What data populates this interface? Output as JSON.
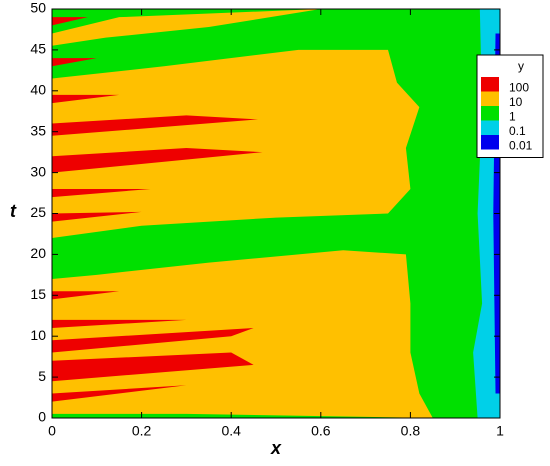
{
  "chart_data": {
    "type": "contour",
    "xlabel": "x",
    "ylabel": "t",
    "xlim": [
      0,
      1
    ],
    "ylim": [
      0,
      50
    ],
    "xticks": [
      0,
      0.2,
      0.4,
      0.6,
      0.8,
      1
    ],
    "yticks": [
      0,
      5,
      10,
      15,
      20,
      25,
      30,
      35,
      40,
      45,
      50
    ],
    "legend_title": "y",
    "levels": [
      100,
      10,
      1,
      0.1,
      0.01
    ],
    "colors": [
      "#ee0000",
      "#ffc000",
      "#00e000",
      "#00d0e8",
      "#0000ee"
    ],
    "regions": [
      {
        "level": 0.1,
        "points": [
          [
            0,
            0
          ],
          [
            1,
            0
          ],
          [
            1,
            50
          ],
          [
            0,
            50
          ]
        ]
      },
      {
        "level": 0.01,
        "points": [
          [
            0.99,
            3
          ],
          [
            1,
            3
          ],
          [
            1,
            47
          ],
          [
            0.99,
            47
          ],
          [
            0.985,
            25
          ]
        ]
      },
      {
        "level": 1,
        "points": [
          [
            0,
            0
          ],
          [
            0.95,
            0
          ],
          [
            0.94,
            8
          ],
          [
            0.96,
            14
          ],
          [
            0.95,
            25
          ],
          [
            0.96,
            38
          ],
          [
            0.955,
            50
          ],
          [
            0,
            50
          ]
        ]
      },
      {
        "level": 10,
        "points": [
          [
            0,
            0.5
          ],
          [
            0.3,
            0.5
          ],
          [
            0.85,
            0
          ],
          [
            0.82,
            3
          ],
          [
            0.8,
            8
          ],
          [
            0.8,
            14
          ],
          [
            0.79,
            20
          ],
          [
            0.65,
            20.5
          ],
          [
            0.35,
            19
          ],
          [
            0.1,
            17.5
          ],
          [
            0,
            17
          ]
        ]
      },
      {
        "level": 10,
        "points": [
          [
            0,
            22
          ],
          [
            0.2,
            23.5
          ],
          [
            0.5,
            24.5
          ],
          [
            0.75,
            25
          ],
          [
            0.8,
            28
          ],
          [
            0.79,
            33
          ],
          [
            0.82,
            38
          ],
          [
            0.77,
            41
          ],
          [
            0.75,
            45
          ],
          [
            0.55,
            45
          ],
          [
            0.25,
            43
          ],
          [
            0,
            41.5
          ]
        ]
      },
      {
        "level": 10,
        "points": [
          [
            0,
            47
          ],
          [
            0.15,
            49
          ],
          [
            0.6,
            50
          ],
          [
            0.35,
            47.8
          ],
          [
            0.12,
            46.5
          ],
          [
            0,
            45.5
          ]
        ]
      },
      {
        "level": 100,
        "points": [
          [
            0,
            2
          ],
          [
            0.3,
            4
          ],
          [
            0,
            3
          ]
        ]
      },
      {
        "level": 100,
        "points": [
          [
            0,
            4.5
          ],
          [
            0.45,
            6.5
          ],
          [
            0.4,
            8
          ],
          [
            0,
            7
          ]
        ]
      },
      {
        "level": 100,
        "points": [
          [
            0,
            8
          ],
          [
            0.4,
            10
          ],
          [
            0.45,
            11
          ],
          [
            0,
            9.5
          ]
        ]
      },
      {
        "level": 100,
        "points": [
          [
            0,
            11
          ],
          [
            0.3,
            12
          ],
          [
            0,
            12
          ]
        ]
      },
      {
        "level": 100,
        "points": [
          [
            0,
            14.5
          ],
          [
            0.15,
            15.5
          ],
          [
            0,
            15.5
          ]
        ]
      },
      {
        "level": 100,
        "points": [
          [
            0,
            24
          ],
          [
            0.2,
            25.2
          ],
          [
            0,
            25
          ]
        ]
      },
      {
        "level": 100,
        "points": [
          [
            0,
            27
          ],
          [
            0.22,
            28
          ],
          [
            0,
            28
          ]
        ]
      },
      {
        "level": 100,
        "points": [
          [
            0,
            30
          ],
          [
            0.47,
            32.5
          ],
          [
            0.3,
            33
          ],
          [
            0,
            32
          ]
        ]
      },
      {
        "level": 100,
        "points": [
          [
            0,
            34.5
          ],
          [
            0.46,
            36.5
          ],
          [
            0.3,
            37
          ],
          [
            0,
            36
          ]
        ]
      },
      {
        "level": 100,
        "points": [
          [
            0,
            38.5
          ],
          [
            0.15,
            39.5
          ],
          [
            0,
            39.5
          ]
        ]
      },
      {
        "level": 100,
        "points": [
          [
            0,
            43
          ],
          [
            0.1,
            44
          ],
          [
            0,
            44
          ]
        ]
      },
      {
        "level": 100,
        "points": [
          [
            0,
            48
          ],
          [
            0.08,
            49
          ],
          [
            0,
            49
          ]
        ]
      }
    ]
  }
}
